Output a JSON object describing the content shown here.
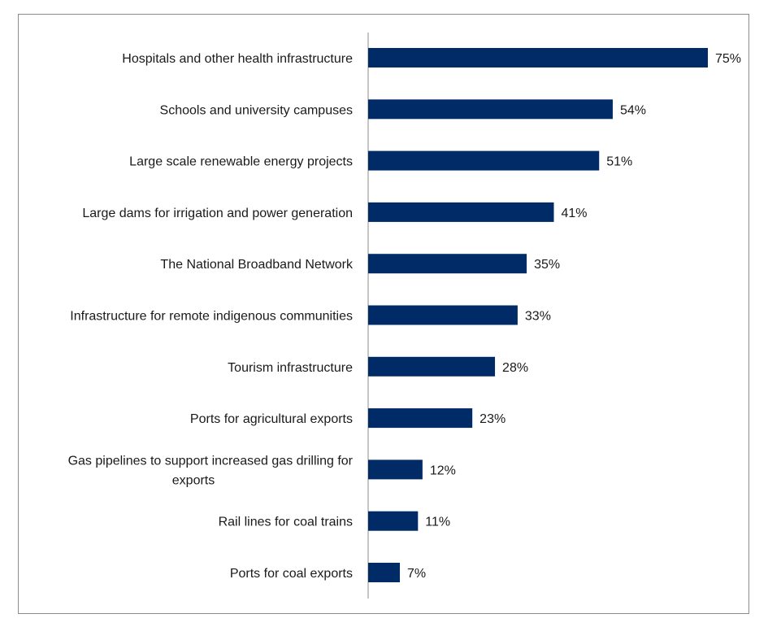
{
  "chart_data": {
    "type": "bar",
    "orientation": "horizontal",
    "title": "",
    "xlabel": "",
    "ylabel": "",
    "xlim": [
      0,
      75
    ],
    "grid": false,
    "legend": "none",
    "bar_color": "#002b66",
    "value_suffix": "%",
    "categories": [
      "Hospitals and other health infrastructure",
      "Schools and university campuses",
      "Large scale renewable energy projects",
      "Large dams for irrigation and power generation",
      "The National Broadband Network",
      "Infrastructure for remote indigenous communities",
      "Tourism infrastructure",
      "Ports for agricultural exports",
      "Gas pipelines to support increased gas drilling for exports",
      "Rail lines for coal trains",
      "Ports for coal exports"
    ],
    "values": [
      75,
      54,
      51,
      41,
      35,
      33,
      28,
      23,
      12,
      11,
      7
    ],
    "value_labels": [
      "75%",
      "54%",
      "51%",
      "41%",
      "35%",
      "33%",
      "28%",
      "23%",
      "12%",
      "11%",
      "7%"
    ]
  }
}
